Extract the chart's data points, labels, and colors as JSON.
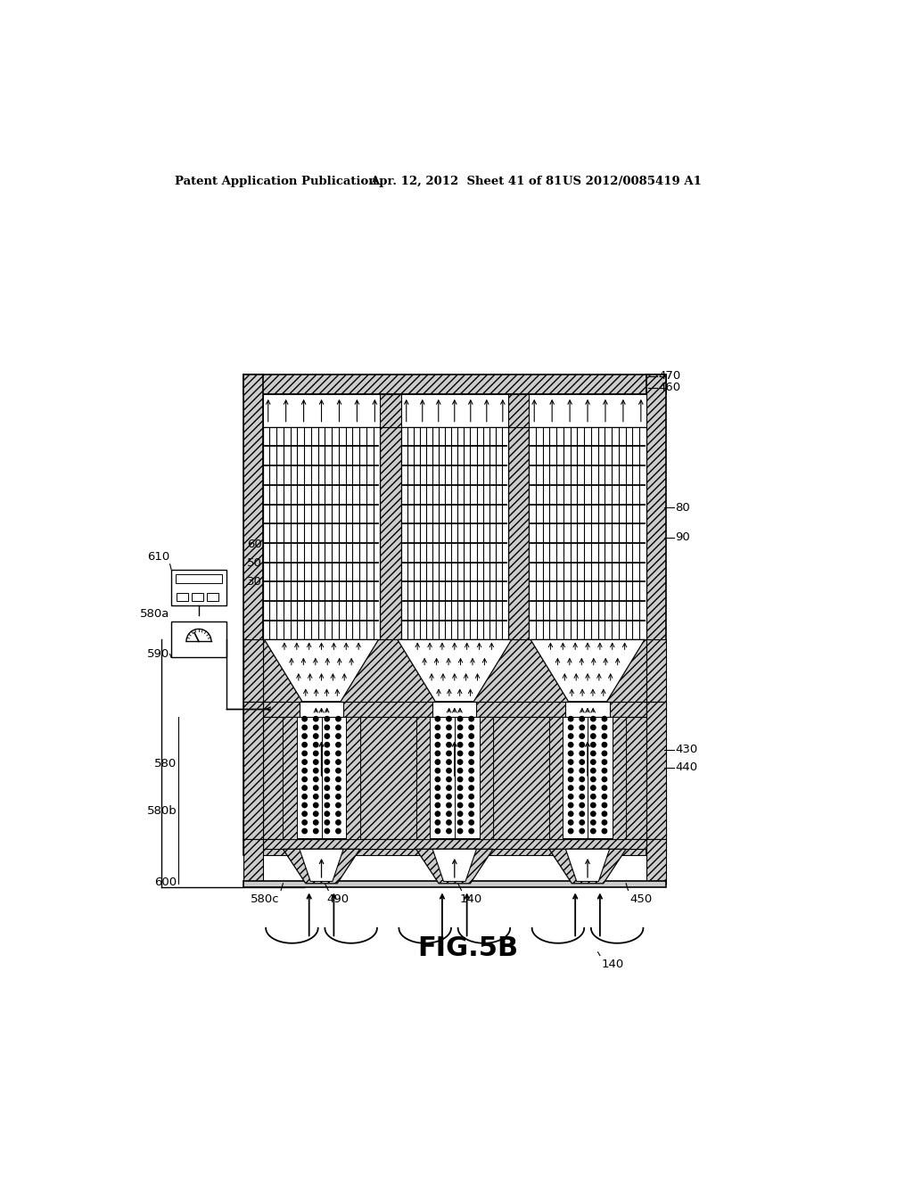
{
  "bg_color": "#ffffff",
  "header_left": "Patent Application Publication",
  "header_mid": "Apr. 12, 2012  Sheet 41 of 81",
  "header_right": "US 2012/0085419 A1",
  "figure_label": "FIG.5B"
}
